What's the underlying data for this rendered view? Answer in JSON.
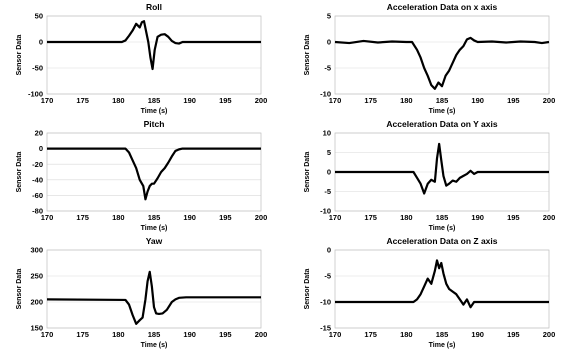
{
  "chart_data": [
    {
      "type": "line",
      "title": "Roll",
      "xlabel": "Time (s)",
      "ylabel": "Sensor Data",
      "xlim": [
        170,
        200
      ],
      "ylim": [
        -100,
        50
      ],
      "xticks": [
        "170",
        "175",
        "180",
        "185",
        "190",
        "195",
        "200"
      ],
      "yticks": [
        "-100",
        "-50",
        "0",
        "50"
      ],
      "grid": true,
      "series": [
        {
          "x": [
            170,
            180.5,
            181,
            181.5,
            182,
            182.5,
            183,
            183.3,
            183.6,
            183.9,
            184.2,
            184.5,
            184.8,
            185.1,
            185.5,
            186,
            186.5,
            187,
            187.5,
            188,
            188.5,
            189,
            200
          ],
          "y": [
            0,
            0,
            3,
            12,
            22,
            35,
            28,
            38,
            40,
            20,
            0,
            -30,
            -52,
            -15,
            10,
            14,
            15,
            10,
            2,
            -2,
            -3,
            0,
            0
          ]
        }
      ]
    },
    {
      "type": "line",
      "title": "Acceleration Data on x axis",
      "xlabel": "Time (s)",
      "ylabel": "Sensor Data",
      "xlim": [
        170,
        200
      ],
      "ylim": [
        -10,
        5
      ],
      "xticks": [
        "170",
        "175",
        "180",
        "185",
        "190",
        "195",
        "200"
      ],
      "yticks": [
        "-10",
        "-5",
        "0",
        "5"
      ],
      "grid": true,
      "series": [
        {
          "x": [
            170,
            172,
            174,
            176,
            178,
            180,
            180.8,
            181.5,
            182,
            182.5,
            183,
            183.5,
            184,
            184.5,
            185,
            185.5,
            186,
            186.5,
            187,
            187.5,
            188,
            188.5,
            189,
            189.5,
            190,
            192,
            194,
            196,
            198,
            199,
            200
          ],
          "y": [
            0,
            -0.2,
            0.2,
            -0.1,
            0.1,
            0,
            0,
            -1.5,
            -3,
            -5,
            -6.5,
            -8.3,
            -9,
            -7.8,
            -8.5,
            -6.5,
            -5.5,
            -4,
            -2.5,
            -1.5,
            -0.8,
            0.5,
            0.8,
            0.3,
            0,
            0.1,
            -0.1,
            0.1,
            0,
            -0.2,
            0
          ]
        }
      ]
    },
    {
      "type": "line",
      "title": "Pitch",
      "xlabel": "Time (s)",
      "ylabel": "Sensor Data",
      "xlim": [
        170,
        200
      ],
      "ylim": [
        -80,
        20
      ],
      "xticks": [
        "170",
        "175",
        "180",
        "185",
        "190",
        "195",
        "200"
      ],
      "yticks": [
        "-80",
        "-60",
        "-40",
        "-20",
        "0",
        "20"
      ],
      "grid": true,
      "series": [
        {
          "x": [
            170,
            181,
            181.5,
            182,
            182.5,
            183,
            183.5,
            183.8,
            184.1,
            184.4,
            184.7,
            185,
            185.5,
            186,
            186.5,
            187,
            187.5,
            188,
            188.5,
            189,
            200
          ],
          "y": [
            0,
            0,
            -5,
            -15,
            -25,
            -40,
            -48,
            -65,
            -55,
            -48,
            -45,
            -45,
            -38,
            -30,
            -25,
            -18,
            -10,
            -3,
            -1,
            0,
            0
          ]
        }
      ]
    },
    {
      "type": "line",
      "title": "Acceleration Data on Y axis",
      "xlabel": "Time (s)",
      "ylabel": "Sensor Data",
      "xlim": [
        170,
        200
      ],
      "ylim": [
        -10,
        10
      ],
      "xticks": [
        "170",
        "175",
        "180",
        "185",
        "190",
        "195",
        "200"
      ],
      "yticks": [
        "-10",
        "-5",
        "0",
        "5",
        "10"
      ],
      "grid": true,
      "series": [
        {
          "x": [
            170,
            181,
            181.5,
            182,
            182.5,
            183,
            183.5,
            184,
            184.3,
            184.6,
            184.9,
            185.2,
            185.6,
            186,
            186.5,
            187,
            187.5,
            188,
            188.5,
            189,
            189.5,
            190,
            200
          ],
          "y": [
            0,
            0,
            -1.5,
            -3,
            -5.5,
            -3,
            -2,
            -2.5,
            3.5,
            7.2,
            3,
            -1,
            -3.5,
            -3,
            -2.2,
            -2.5,
            -1.5,
            -1,
            -0.5,
            0.3,
            -0.5,
            0,
            0
          ]
        }
      ]
    },
    {
      "type": "line",
      "title": "Yaw",
      "xlabel": "Time (s)",
      "ylabel": "Sensor Data",
      "xlim": [
        170,
        200
      ],
      "ylim": [
        150,
        300
      ],
      "xticks": [
        "170",
        "175",
        "180",
        "185",
        "190",
        "195",
        "200"
      ],
      "yticks": [
        "150",
        "200",
        "250",
        "300"
      ],
      "grid": true,
      "series": [
        {
          "x": [
            170,
            181,
            181.5,
            182,
            182.5,
            183,
            183.4,
            183.8,
            184.1,
            184.4,
            184.7,
            185,
            185.3,
            185.7,
            186.2,
            186.8,
            187.5,
            188,
            188.5,
            189.5,
            190.5,
            200
          ],
          "y": [
            205,
            204,
            195,
            175,
            158,
            165,
            170,
            205,
            240,
            258,
            230,
            190,
            178,
            177,
            178,
            185,
            200,
            205,
            208,
            209,
            209,
            209
          ]
        }
      ]
    },
    {
      "type": "line",
      "title": "Acceleration Data on Z axis",
      "xlabel": "Time (s)",
      "ylabel": "Sensor Data",
      "xlim": [
        170,
        200
      ],
      "ylim": [
        -15,
        0
      ],
      "xticks": [
        "170",
        "175",
        "180",
        "185",
        "190",
        "195",
        "200"
      ],
      "yticks": [
        "-15",
        "-10",
        "-5",
        "0"
      ],
      "grid": true,
      "series": [
        {
          "x": [
            170,
            181,
            181.5,
            182,
            182.5,
            183,
            183.5,
            184,
            184.3,
            184.6,
            184.9,
            185.2,
            185.6,
            186,
            186.5,
            187,
            187.5,
            188,
            188.5,
            189,
            189.5,
            190,
            200
          ],
          "y": [
            -10,
            -10,
            -9.5,
            -8.5,
            -7,
            -5.5,
            -6.5,
            -4,
            -2,
            -3.5,
            -2.5,
            -4.5,
            -6.5,
            -7.5,
            -8,
            -8.5,
            -9.5,
            -10.5,
            -9.5,
            -11,
            -10,
            -10,
            -10
          ]
        }
      ]
    }
  ]
}
